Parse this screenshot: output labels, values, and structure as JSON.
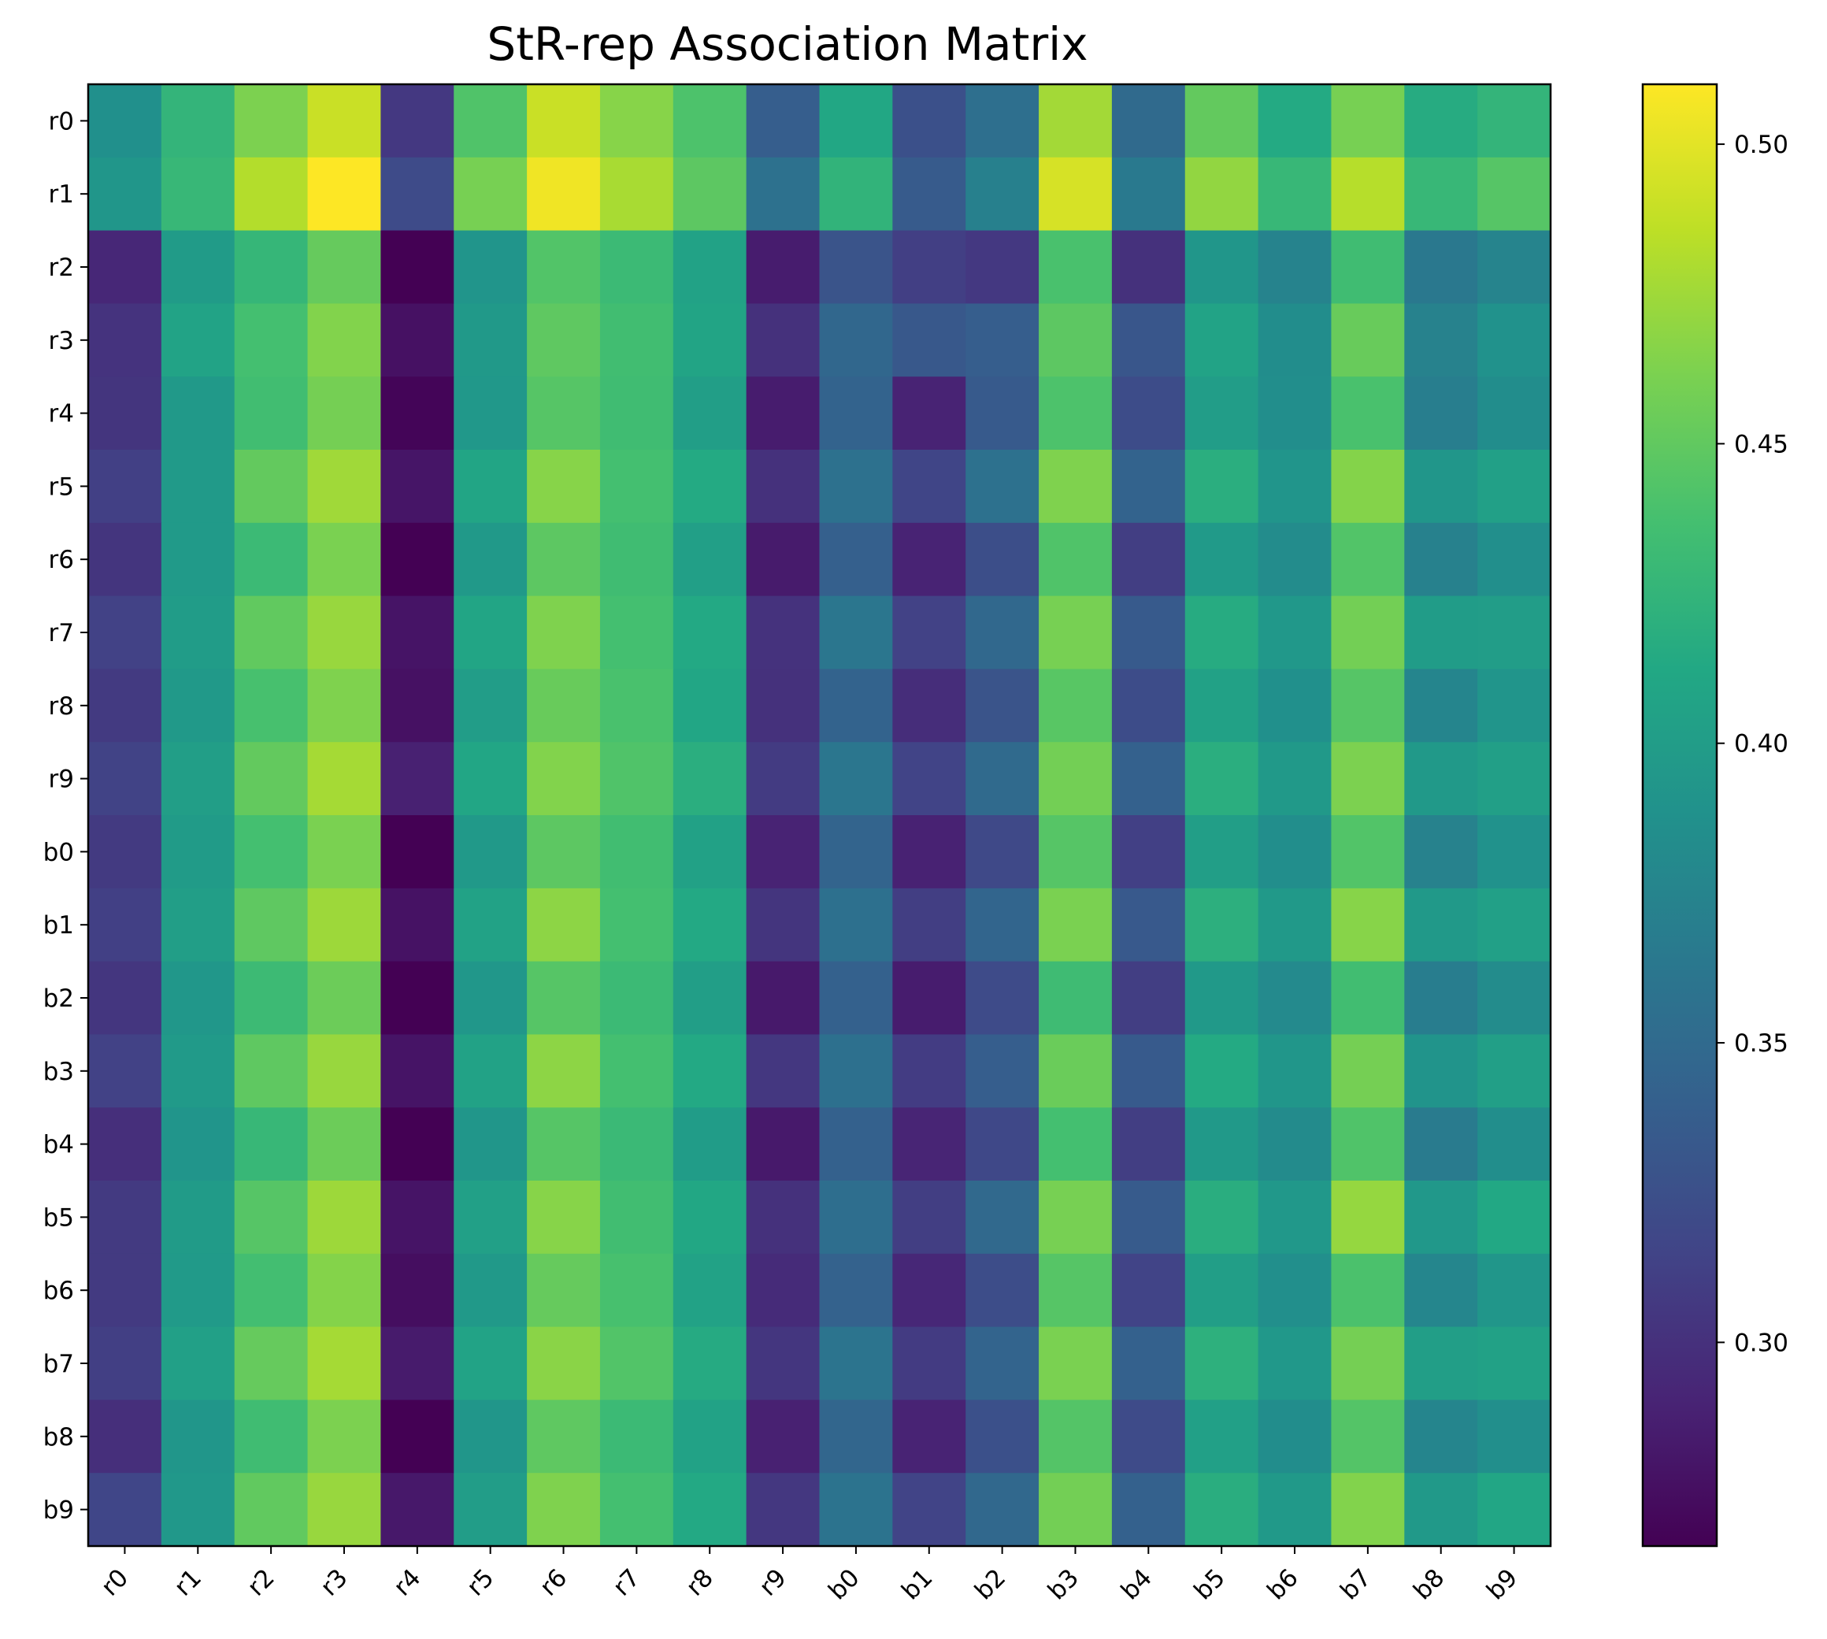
{
  "chart_data": {
    "type": "heatmap",
    "title": "StR-rep Association Matrix",
    "x_labels": [
      "r0",
      "r1",
      "r2",
      "r3",
      "r4",
      "r5",
      "r6",
      "r7",
      "r8",
      "r9",
      "b0",
      "b1",
      "b2",
      "b3",
      "b4",
      "b5",
      "b6",
      "b7",
      "b8",
      "b9"
    ],
    "y_labels": [
      "r0",
      "r1",
      "r2",
      "r3",
      "r4",
      "r5",
      "r6",
      "r7",
      "r8",
      "r9",
      "b0",
      "b1",
      "b2",
      "b3",
      "b4",
      "b5",
      "b6",
      "b7",
      "b8",
      "b9"
    ],
    "colormap": "viridis",
    "vmin": 0.266,
    "vmax": 0.51,
    "colorbar_ticks": [
      0.3,
      0.35,
      0.4,
      0.45,
      0.5
    ],
    "colorbar_tick_labels": [
      "0.30",
      "0.35",
      "0.40",
      "0.45",
      "0.50"
    ],
    "x_tick_rotation_deg": 45,
    "values": [
      [
        0.387,
        0.425,
        0.462,
        0.49,
        0.306,
        0.442,
        0.49,
        0.466,
        0.441,
        0.338,
        0.411,
        0.326,
        0.355,
        0.476,
        0.35,
        0.451,
        0.414,
        0.46,
        0.416,
        0.425
      ],
      [
        0.393,
        0.428,
        0.482,
        0.51,
        0.321,
        0.46,
        0.505,
        0.478,
        0.448,
        0.357,
        0.424,
        0.336,
        0.371,
        0.495,
        0.365,
        0.47,
        0.428,
        0.483,
        0.428,
        0.445
      ],
      [
        0.293,
        0.399,
        0.427,
        0.452,
        0.266,
        0.392,
        0.443,
        0.431,
        0.406,
        0.285,
        0.329,
        0.311,
        0.306,
        0.439,
        0.3,
        0.393,
        0.374,
        0.434,
        0.364,
        0.375
      ],
      [
        0.302,
        0.407,
        0.437,
        0.464,
        0.277,
        0.397,
        0.449,
        0.435,
        0.408,
        0.3,
        0.347,
        0.333,
        0.338,
        0.448,
        0.331,
        0.407,
        0.384,
        0.453,
        0.373,
        0.389
      ],
      [
        0.303,
        0.396,
        0.435,
        0.459,
        0.269,
        0.395,
        0.445,
        0.434,
        0.402,
        0.285,
        0.343,
        0.29,
        0.335,
        0.441,
        0.322,
        0.401,
        0.385,
        0.439,
        0.369,
        0.384
      ],
      [
        0.312,
        0.398,
        0.451,
        0.475,
        0.28,
        0.409,
        0.466,
        0.437,
        0.414,
        0.3,
        0.357,
        0.316,
        0.357,
        0.463,
        0.343,
        0.419,
        0.392,
        0.465,
        0.393,
        0.404
      ],
      [
        0.303,
        0.398,
        0.431,
        0.461,
        0.266,
        0.396,
        0.448,
        0.434,
        0.403,
        0.284,
        0.34,
        0.29,
        0.324,
        0.442,
        0.31,
        0.398,
        0.383,
        0.443,
        0.372,
        0.386
      ],
      [
        0.313,
        0.4,
        0.45,
        0.472,
        0.279,
        0.409,
        0.463,
        0.437,
        0.413,
        0.301,
        0.362,
        0.313,
        0.348,
        0.46,
        0.335,
        0.416,
        0.395,
        0.458,
        0.4,
        0.401
      ],
      [
        0.307,
        0.397,
        0.438,
        0.463,
        0.277,
        0.401,
        0.453,
        0.439,
        0.41,
        0.3,
        0.343,
        0.297,
        0.329,
        0.446,
        0.322,
        0.405,
        0.387,
        0.445,
        0.376,
        0.392
      ],
      [
        0.314,
        0.402,
        0.451,
        0.477,
        0.288,
        0.41,
        0.464,
        0.442,
        0.419,
        0.308,
        0.362,
        0.315,
        0.35,
        0.458,
        0.341,
        0.419,
        0.396,
        0.462,
        0.397,
        0.403
      ],
      [
        0.307,
        0.399,
        0.437,
        0.461,
        0.266,
        0.397,
        0.448,
        0.435,
        0.405,
        0.29,
        0.344,
        0.289,
        0.319,
        0.445,
        0.312,
        0.402,
        0.385,
        0.443,
        0.373,
        0.389
      ],
      [
        0.312,
        0.402,
        0.449,
        0.474,
        0.278,
        0.406,
        0.468,
        0.437,
        0.413,
        0.303,
        0.356,
        0.31,
        0.345,
        0.461,
        0.334,
        0.42,
        0.397,
        0.466,
        0.397,
        0.404
      ],
      [
        0.304,
        0.394,
        0.432,
        0.455,
        0.266,
        0.394,
        0.445,
        0.431,
        0.402,
        0.283,
        0.341,
        0.285,
        0.321,
        0.433,
        0.31,
        0.397,
        0.381,
        0.435,
        0.368,
        0.383
      ],
      [
        0.313,
        0.398,
        0.449,
        0.472,
        0.279,
        0.406,
        0.468,
        0.437,
        0.413,
        0.305,
        0.356,
        0.309,
        0.338,
        0.454,
        0.335,
        0.414,
        0.393,
        0.459,
        0.391,
        0.403
      ],
      [
        0.299,
        0.392,
        0.428,
        0.455,
        0.266,
        0.393,
        0.445,
        0.43,
        0.4,
        0.283,
        0.341,
        0.291,
        0.318,
        0.437,
        0.31,
        0.396,
        0.382,
        0.442,
        0.367,
        0.385
      ],
      [
        0.307,
        0.399,
        0.445,
        0.474,
        0.279,
        0.404,
        0.466,
        0.435,
        0.411,
        0.3,
        0.354,
        0.31,
        0.349,
        0.46,
        0.336,
        0.418,
        0.395,
        0.471,
        0.395,
        0.412
      ],
      [
        0.307,
        0.398,
        0.436,
        0.465,
        0.275,
        0.397,
        0.452,
        0.438,
        0.406,
        0.296,
        0.342,
        0.293,
        0.323,
        0.445,
        0.315,
        0.402,
        0.386,
        0.44,
        0.377,
        0.393
      ],
      [
        0.311,
        0.404,
        0.452,
        0.477,
        0.284,
        0.407,
        0.467,
        0.443,
        0.415,
        0.304,
        0.36,
        0.308,
        0.344,
        0.461,
        0.341,
        0.421,
        0.395,
        0.459,
        0.402,
        0.405
      ],
      [
        0.299,
        0.393,
        0.434,
        0.462,
        0.266,
        0.393,
        0.449,
        0.431,
        0.406,
        0.288,
        0.346,
        0.29,
        0.326,
        0.444,
        0.321,
        0.404,
        0.384,
        0.444,
        0.376,
        0.386
      ],
      [
        0.317,
        0.395,
        0.45,
        0.472,
        0.282,
        0.401,
        0.463,
        0.437,
        0.413,
        0.305,
        0.359,
        0.315,
        0.348,
        0.458,
        0.341,
        0.418,
        0.396,
        0.464,
        0.397,
        0.41
      ]
    ]
  }
}
